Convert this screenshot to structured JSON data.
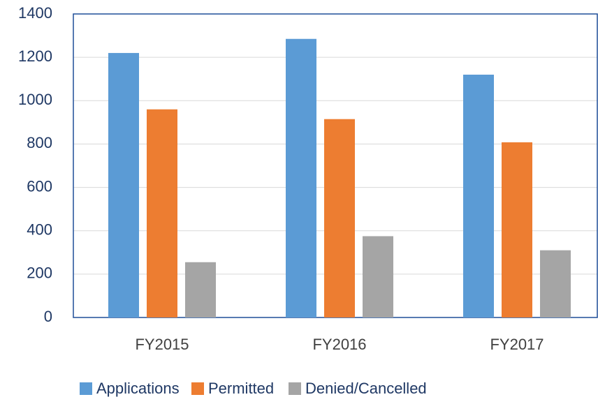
{
  "chart_data": {
    "type": "bar",
    "categories": [
      "FY2015",
      "FY2016",
      "FY2017"
    ],
    "series": [
      {
        "name": "Applications",
        "color": "#5b9bd5",
        "values": [
          1220,
          1285,
          1120
        ]
      },
      {
        "name": "Permitted",
        "color": "#ed7d31",
        "values": [
          960,
          915,
          808
        ]
      },
      {
        "name": "Denied/Cancelled",
        "color": "#a5a5a5",
        "values": [
          255,
          375,
          310
        ]
      }
    ],
    "ylim": [
      0,
      1400
    ],
    "yticks": [
      0,
      200,
      400,
      600,
      800,
      1000,
      1200,
      1400
    ],
    "grid": true,
    "legend": "bottom"
  }
}
